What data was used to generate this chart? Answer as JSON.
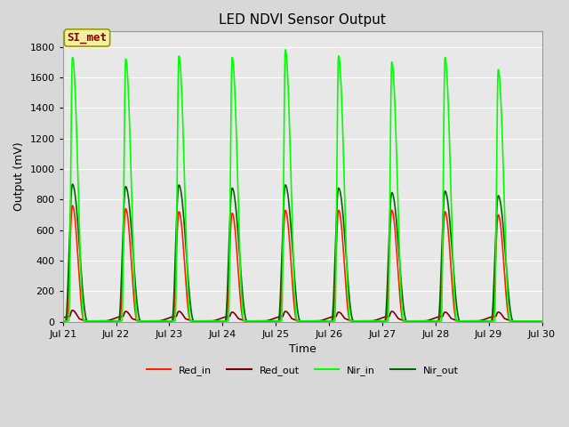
{
  "title": "LED NDVI Sensor Output",
  "xlabel": "Time",
  "ylabel": "Output (mV)",
  "xlim": [
    21,
    30
  ],
  "ylim": [
    0,
    1900
  ],
  "yticks": [
    0,
    200,
    400,
    600,
    800,
    1000,
    1200,
    1400,
    1600,
    1800
  ],
  "xtick_positions": [
    21,
    22,
    23,
    24,
    25,
    26,
    27,
    28,
    29,
    30
  ],
  "xtick_labels": [
    "Jul 21",
    "Jul 22",
    "Jul 23",
    "Jul 24",
    "Jul 25",
    "Jul 26",
    "Jul 27",
    "Jul 28",
    "Jul 29",
    "Jul 30"
  ],
  "bg_color": "#d8d8d8",
  "plot_bg": "#e8e8e8",
  "grid_color": "#ffffff",
  "colors": {
    "red_in": "#ff2000",
    "red_out": "#7b0000",
    "nir_in": "#00ff00",
    "nir_out": "#006400"
  },
  "legend_label": "SI_met",
  "legend_box_color": "#f5f0a0",
  "legend_border_color": "#999900",
  "legend_text_color": "#8b0000",
  "peak_offsets": [
    0.18,
    1.18,
    2.18,
    3.18,
    4.18,
    5.18,
    6.18,
    7.18,
    8.18
  ],
  "nir_in_peaks": [
    1730,
    1720,
    1740,
    1730,
    1780,
    1740,
    1700,
    1730,
    1650
  ],
  "nir_out_peaks": [
    900,
    885,
    895,
    875,
    895,
    875,
    845,
    855,
    825
  ],
  "red_in_peaks": [
    760,
    740,
    720,
    710,
    730,
    730,
    730,
    720,
    700
  ],
  "red_out_peaks": [
    75,
    68,
    68,
    63,
    68,
    63,
    68,
    63,
    63
  ],
  "nir_in_rise": 0.07,
  "nir_in_fall": 0.22,
  "nir_out_rise": 0.13,
  "nir_out_fall": 0.28,
  "red_rise": 0.11,
  "red_fall": 0.22,
  "red_out_rise": 0.09,
  "red_out_fall": 0.18,
  "baseline": 5,
  "red_out_bump": 30
}
